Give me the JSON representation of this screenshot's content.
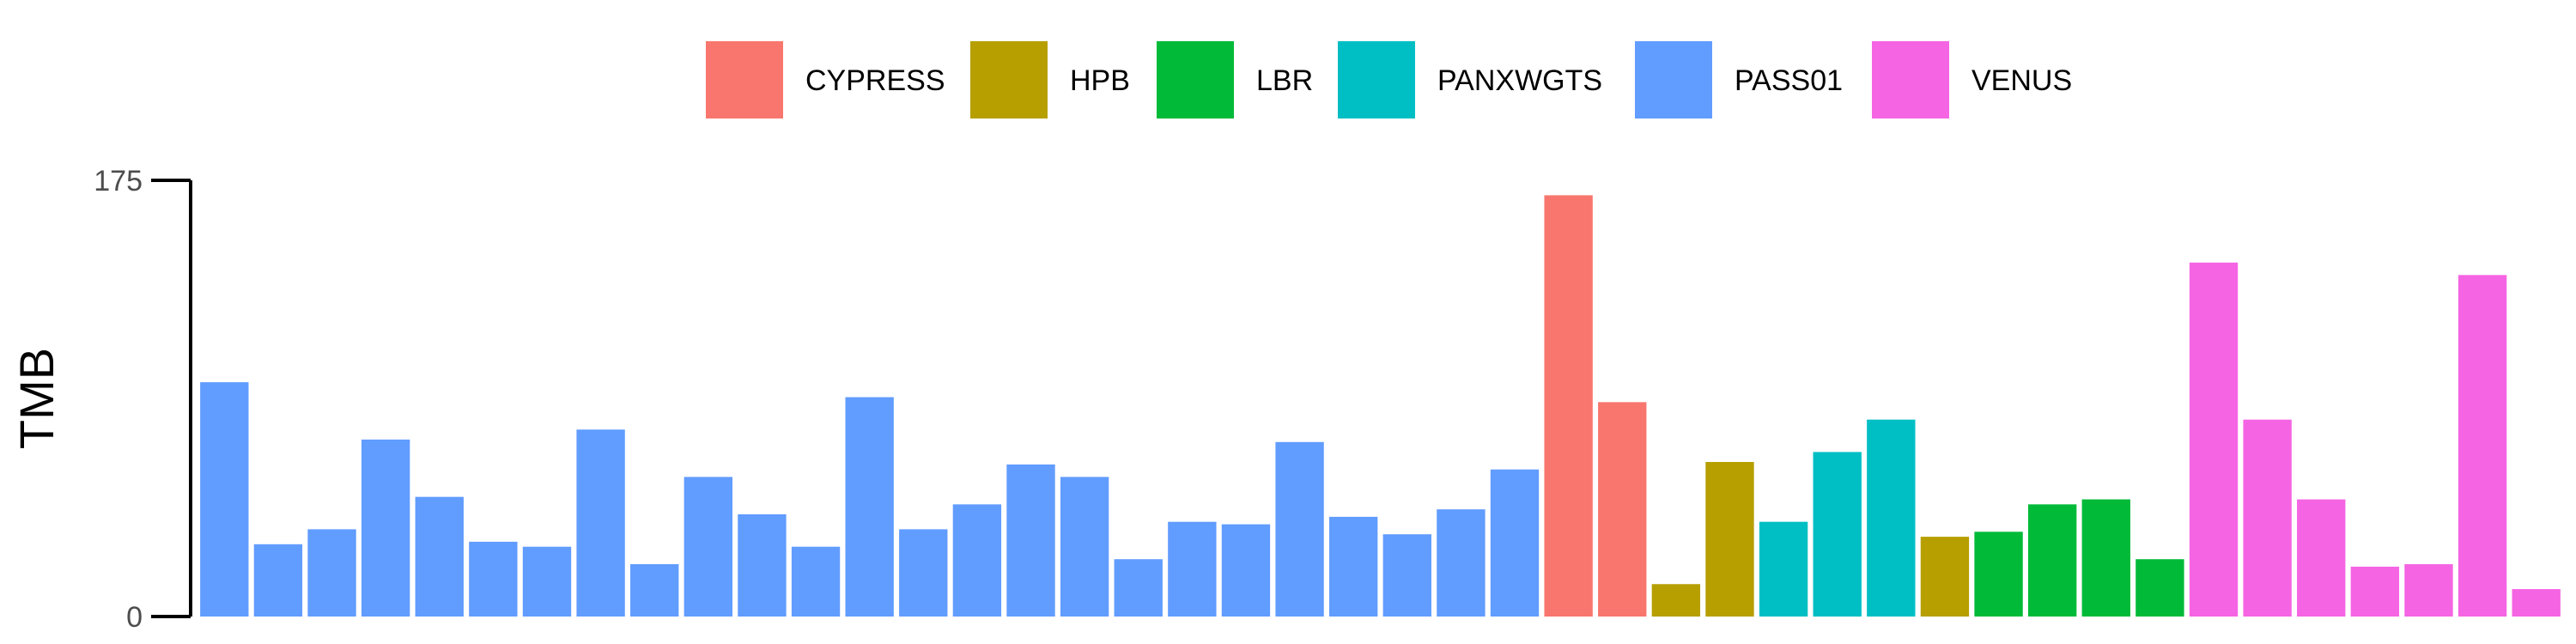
{
  "chart_data": {
    "type": "bar",
    "ylabel": "TMB",
    "xlabel": "",
    "ylim": [
      0,
      175
    ],
    "yticks": [
      0,
      175
    ],
    "grid": false,
    "legend_position": "top",
    "legend": [
      {
        "name": "CYPRESS",
        "color": "#F8766D"
      },
      {
        "name": "HPB",
        "color": "#B79F00"
      },
      {
        "name": "LBR",
        "color": "#00BA38"
      },
      {
        "name": "PANXWGTS",
        "color": "#00BFC4"
      },
      {
        "name": "PASS01",
        "color": "#619CFF"
      },
      {
        "name": "VENUS",
        "color": "#F564E3"
      }
    ],
    "bars": [
      {
        "group": "PASS01",
        "value": 94
      },
      {
        "group": "PASS01",
        "value": 29
      },
      {
        "group": "PASS01",
        "value": 35
      },
      {
        "group": "PASS01",
        "value": 71
      },
      {
        "group": "PASS01",
        "value": 48
      },
      {
        "group": "PASS01",
        "value": 30
      },
      {
        "group": "PASS01",
        "value": 28
      },
      {
        "group": "PASS01",
        "value": 75
      },
      {
        "group": "PASS01",
        "value": 21
      },
      {
        "group": "PASS01",
        "value": 56
      },
      {
        "group": "PASS01",
        "value": 41
      },
      {
        "group": "PASS01",
        "value": 28
      },
      {
        "group": "PASS01",
        "value": 88
      },
      {
        "group": "PASS01",
        "value": 35
      },
      {
        "group": "PASS01",
        "value": 45
      },
      {
        "group": "PASS01",
        "value": 61
      },
      {
        "group": "PASS01",
        "value": 56
      },
      {
        "group": "PASS01",
        "value": 23
      },
      {
        "group": "PASS01",
        "value": 38
      },
      {
        "group": "PASS01",
        "value": 37
      },
      {
        "group": "PASS01",
        "value": 70
      },
      {
        "group": "PASS01",
        "value": 40
      },
      {
        "group": "PASS01",
        "value": 33
      },
      {
        "group": "PASS01",
        "value": 43
      },
      {
        "group": "PASS01",
        "value": 59
      },
      {
        "group": "CYPRESS",
        "value": 169
      },
      {
        "group": "CYPRESS",
        "value": 86
      },
      {
        "group": "HPB",
        "value": 13
      },
      {
        "group": "HPB",
        "value": 62
      },
      {
        "group": "PANXWGTS",
        "value": 38
      },
      {
        "group": "PANXWGTS",
        "value": 66
      },
      {
        "group": "PANXWGTS",
        "value": 79
      },
      {
        "group": "HPB",
        "value": 32
      },
      {
        "group": "LBR",
        "value": 34
      },
      {
        "group": "LBR",
        "value": 45
      },
      {
        "group": "LBR",
        "value": 47
      },
      {
        "group": "LBR",
        "value": 23
      },
      {
        "group": "VENUS",
        "value": 142
      },
      {
        "group": "VENUS",
        "value": 79
      },
      {
        "group": "VENUS",
        "value": 47
      },
      {
        "group": "VENUS",
        "value": 20
      },
      {
        "group": "VENUS",
        "value": 21
      },
      {
        "group": "VENUS",
        "value": 137
      },
      {
        "group": "VENUS",
        "value": 11
      }
    ]
  }
}
